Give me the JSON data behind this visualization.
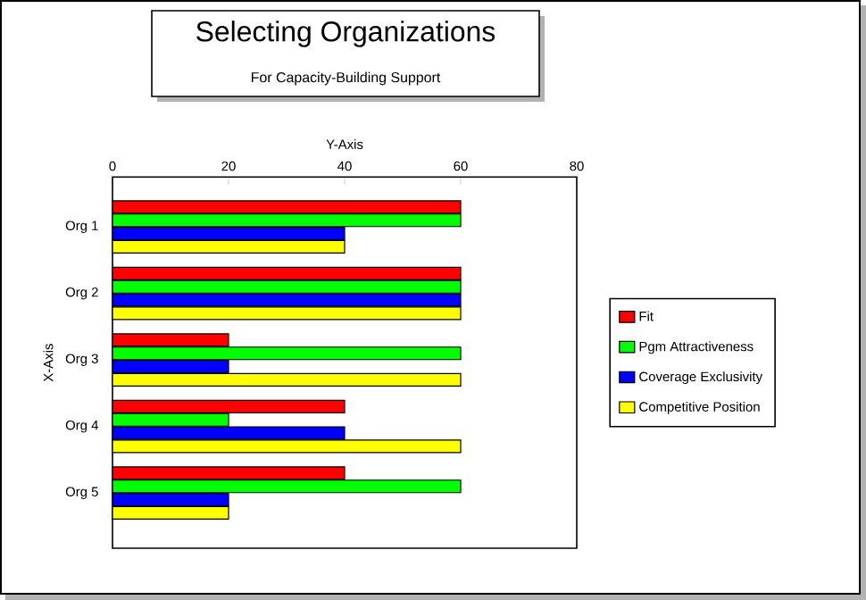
{
  "chart_data": {
    "type": "bar",
    "orientation": "horizontal",
    "title": "Selecting Organizations",
    "subtitle": "For Capacity-Building Support",
    "xlabel": "Y-Axis",
    "ylabel": "X-Axis",
    "categories": [
      "Org 1",
      "Org 2",
      "Org 3",
      "Org 4",
      "Org 5"
    ],
    "series": [
      {
        "name": "Fit",
        "color": "#ff0000",
        "values": [
          60,
          60,
          20,
          40,
          40
        ]
      },
      {
        "name": "Pgm Attractiveness",
        "color": "#00ff00",
        "values": [
          60,
          60,
          60,
          20,
          60
        ]
      },
      {
        "name": "Coverage Exclusivity",
        "color": "#0000ff",
        "values": [
          40,
          60,
          20,
          40,
          20
        ]
      },
      {
        "name": "Competitive  Position",
        "color": "#ffff00",
        "values": [
          40,
          60,
          60,
          60,
          20
        ]
      }
    ],
    "xlim": [
      0,
      80
    ],
    "xticks": [
      0,
      20,
      40,
      60,
      80
    ],
    "grid": false,
    "legend": "right"
  }
}
